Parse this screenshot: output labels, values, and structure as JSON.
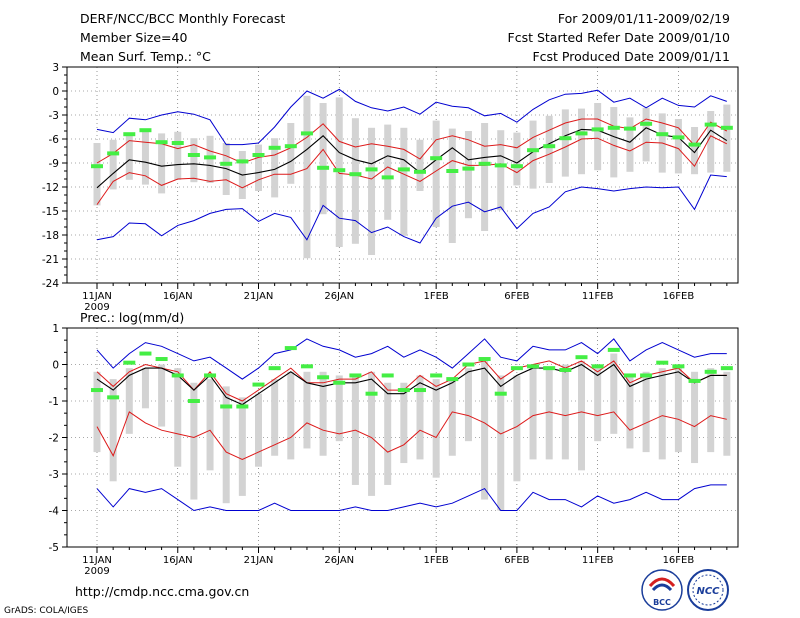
{
  "header": {
    "left": [
      "DERF/NCC/BCC Monthly Forecast",
      "Member Size=40",
      "Mean Surf. Temp.: °C"
    ],
    "right": [
      "For 2009/01/11-2009/02/19",
      "Fcst Started Refer Date 2009/01/10",
      "Fcst Produced Date 2009/01/11"
    ]
  },
  "footer": {
    "url": "http://cmdp.ncc.cma.gov.cn",
    "credit": "GrADS: COLA/IGES",
    "logo_left_text": "BCC",
    "logo_right_text": "NCC"
  },
  "colors": {
    "box": "#d3d3d3",
    "mean": "#000000",
    "quantile": "#dd1a1a",
    "extreme": "#0000d0",
    "obs": "#44ee44",
    "grid": "#555555"
  },
  "chart_data": [
    {
      "type": "line",
      "title": "Mean Surf. Temp.: °C",
      "ylim": [
        -24,
        3
      ],
      "yticks": [
        3,
        0,
        -3,
        -6,
        -9,
        -12,
        -15,
        -18,
        -21,
        -24
      ],
      "xticks": [
        {
          "day": 0,
          "label": "11JAN",
          "sub": "2009"
        },
        {
          "day": 5,
          "label": "16JAN"
        },
        {
          "day": 10,
          "label": "21JAN"
        },
        {
          "day": 15,
          "label": "26JAN"
        },
        {
          "day": 21,
          "label": "1FEB"
        },
        {
          "day": 26,
          "label": "6FEB"
        },
        {
          "day": 31,
          "label": "11FEB"
        },
        {
          "day": 36,
          "label": "16FEB"
        }
      ],
      "series": [
        {
          "name": "ensemble max",
          "values": [
            -4.8,
            -5.2,
            -3.4,
            -3.6,
            -3.0,
            -2.6,
            -2.9,
            -3.6,
            -6.7,
            -6.7,
            -6.5,
            -4.5,
            -2.0,
            0.0,
            -0.9,
            0.2,
            -1.3,
            -2.1,
            -2.5,
            -2.0,
            -2.9,
            -1.4,
            -1.9,
            -2.1,
            -3.1,
            -2.8,
            -3.9,
            -2.3,
            -1.1,
            -0.4,
            -0.3,
            0.1,
            -1.4,
            -0.9,
            -2.1,
            -0.9,
            -1.8,
            -2.0,
            -0.6,
            -1.3
          ]
        },
        {
          "name": "upper quantile",
          "values": [
            -9.0,
            -7.8,
            -6.2,
            -6.4,
            -6.6,
            -7.2,
            -6.7,
            -7.5,
            -8.1,
            -9.0,
            -8.3,
            -8.0,
            -7.1,
            -5.8,
            -4.1,
            -6.3,
            -7.0,
            -6.6,
            -6.9,
            -7.3,
            -8.5,
            -6.1,
            -5.6,
            -6.1,
            -6.9,
            -6.7,
            -7.1,
            -5.8,
            -4.9,
            -4.0,
            -3.5,
            -3.5,
            -4.4,
            -4.7,
            -3.5,
            -4.0,
            -4.6,
            -6.8,
            -3.9,
            -5.0
          ]
        },
        {
          "name": "ensemble mean",
          "values": [
            -12.1,
            -10.3,
            -8.6,
            -8.9,
            -9.4,
            -9.2,
            -9.1,
            -9.3,
            -9.7,
            -10.5,
            -10.2,
            -9.8,
            -8.8,
            -7.3,
            -5.6,
            -7.7,
            -8.6,
            -9.1,
            -8.1,
            -8.6,
            -10.2,
            -8.6,
            -7.1,
            -8.6,
            -8.3,
            -8.1,
            -9.0,
            -7.6,
            -6.6,
            -5.6,
            -4.8,
            -4.9,
            -5.7,
            -6.4,
            -4.6,
            -5.5,
            -5.8,
            -7.7,
            -4.9,
            -6.2
          ]
        },
        {
          "name": "lower quantile",
          "values": [
            -14.2,
            -11.3,
            -10.2,
            -10.6,
            -11.8,
            -11.0,
            -10.9,
            -11.3,
            -11.1,
            -12.1,
            -11.1,
            -10.4,
            -10.4,
            -9.7,
            -7.3,
            -10.3,
            -10.5,
            -11.0,
            -9.5,
            -10.4,
            -11.3,
            -10.0,
            -8.7,
            -9.3,
            -9.3,
            -9.1,
            -10.2,
            -8.7,
            -7.9,
            -7.0,
            -6.0,
            -5.9,
            -6.8,
            -7.5,
            -6.4,
            -6.5,
            -7.2,
            -9.4,
            -5.6,
            -6.6
          ]
        },
        {
          "name": "ensemble min",
          "values": [
            -18.6,
            -18.2,
            -16.5,
            -16.6,
            -18.1,
            -16.8,
            -16.2,
            -15.3,
            -14.8,
            -14.7,
            -16.3,
            -15.3,
            -15.8,
            -18.6,
            -14.3,
            -15.9,
            -16.2,
            -17.7,
            -17.0,
            -18.2,
            -19.0,
            -15.9,
            -14.4,
            -13.9,
            -15.1,
            -14.5,
            -17.2,
            -15.3,
            -14.5,
            -12.6,
            -12.0,
            -12.2,
            -12.5,
            -12.2,
            -12.0,
            -12.1,
            -12.0,
            -14.8,
            -10.5,
            -10.7
          ]
        },
        {
          "name": "box top",
          "values": [
            -6.5,
            -6.1,
            -5.2,
            -4.9,
            -5.3,
            -5.1,
            -5.9,
            -5.6,
            -6.5,
            -7.5,
            -6.7,
            -5.9,
            -4.0,
            -0.6,
            -1.5,
            -0.8,
            -3.4,
            -4.6,
            -4.2,
            -4.6,
            -6.1,
            -3.7,
            -4.7,
            -5.0,
            -4.0,
            -4.9,
            -5.2,
            -3.7,
            -3.1,
            -2.3,
            -2.2,
            -1.5,
            -2.0,
            -3.3,
            -2.1,
            -2.8,
            -3.5,
            -4.5,
            -2.5,
            -1.7
          ]
        },
        {
          "name": "box bottom",
          "values": [
            -14.3,
            -12.3,
            -11.1,
            -11.7,
            -12.8,
            -11.1,
            -11.4,
            -11.5,
            -13.0,
            -13.5,
            -12.5,
            -13.3,
            -11.6,
            -20.9,
            -15.4,
            -19.5,
            -19.1,
            -20.5,
            -16.1,
            -18.1,
            -12.5,
            -17.0,
            -19.0,
            -15.9,
            -17.5,
            -14.9,
            -11.8,
            -12.2,
            -11.5,
            -10.7,
            -10.4,
            -9.9,
            -10.8,
            -10.1,
            -8.8,
            -10.2,
            -10.3,
            -10.4,
            -10.2,
            -10.1
          ]
        },
        {
          "name": "observed",
          "values": [
            -9.4,
            -7.8,
            -5.4,
            -4.9,
            -6.4,
            -6.5,
            -8.0,
            -8.3,
            -9.1,
            -8.8,
            -8.0,
            -7.1,
            -6.9,
            -5.3,
            -9.6,
            -9.9,
            -10.4,
            -9.8,
            -10.8,
            -9.8,
            -10.1,
            -8.4,
            -10.0,
            -9.7,
            -9.1,
            -9.3,
            -9.4,
            -7.4,
            -6.9,
            -5.9,
            -5.3,
            -4.8,
            -4.6,
            -4.7,
            -4.1,
            -5.4,
            -5.8,
            -6.7,
            -4.2,
            -4.6
          ]
        }
      ]
    },
    {
      "type": "line",
      "title": "Prec.: log(mm/d)",
      "ylim": [
        -5,
        1
      ],
      "yticks": [
        1,
        0,
        -1,
        -2,
        -3,
        -4,
        -5
      ],
      "xticks": [
        {
          "day": 0,
          "label": "11JAN",
          "sub": "2009"
        },
        {
          "day": 5,
          "label": "16JAN"
        },
        {
          "day": 10,
          "label": "21JAN"
        },
        {
          "day": 15,
          "label": "26JAN"
        },
        {
          "day": 21,
          "label": "1FEB"
        },
        {
          "day": 26,
          "label": "6FEB"
        },
        {
          "day": 31,
          "label": "11FEB"
        },
        {
          "day": 36,
          "label": "16FEB"
        }
      ],
      "series": [
        {
          "name": "ensemble max",
          "values": [
            0.4,
            -0.1,
            0.3,
            0.6,
            0.5,
            0.3,
            0.1,
            0.2,
            -0.1,
            -0.4,
            -0.1,
            0.3,
            0.4,
            0.7,
            0.5,
            0.4,
            0.2,
            0.3,
            0.5,
            0.2,
            0.4,
            0.2,
            -0.1,
            0.3,
            0.7,
            0.2,
            0.1,
            0.5,
            0.4,
            0.4,
            0.6,
            0.3,
            0.7,
            0.1,
            0.4,
            0.6,
            0.4,
            0.2,
            0.3,
            0.3
          ]
        },
        {
          "name": "upper quantile",
          "values": [
            -0.2,
            -0.6,
            -0.2,
            0.0,
            -0.1,
            -0.2,
            -0.7,
            -0.2,
            -0.8,
            -1.0,
            -0.7,
            -0.4,
            -0.1,
            -0.5,
            -0.5,
            -0.4,
            -0.4,
            -0.2,
            -0.7,
            -0.7,
            -0.3,
            -0.6,
            -0.4,
            0.0,
            0.1,
            -0.4,
            -0.1,
            0.0,
            0.1,
            -0.1,
            0.1,
            -0.2,
            0.1,
            -0.5,
            -0.3,
            -0.2,
            -0.1,
            -0.5,
            -0.3,
            -0.3
          ]
        },
        {
          "name": "ensemble mean",
          "values": [
            -0.4,
            -0.7,
            -0.3,
            -0.1,
            -0.1,
            -0.3,
            -0.7,
            -0.3,
            -0.9,
            -1.1,
            -0.8,
            -0.5,
            -0.2,
            -0.5,
            -0.6,
            -0.5,
            -0.5,
            -0.4,
            -0.8,
            -0.8,
            -0.5,
            -0.7,
            -0.5,
            -0.2,
            -0.1,
            -0.6,
            -0.3,
            -0.1,
            -0.1,
            -0.2,
            0.0,
            -0.3,
            0.0,
            -0.6,
            -0.4,
            -0.3,
            -0.2,
            -0.5,
            -0.3,
            -0.3
          ]
        },
        {
          "name": "lower quantile",
          "values": [
            -1.7,
            -2.5,
            -1.3,
            -1.6,
            -1.8,
            -1.9,
            -2.0,
            -1.8,
            -2.4,
            -2.6,
            -2.4,
            -2.2,
            -2.0,
            -1.6,
            -1.8,
            -1.9,
            -1.8,
            -2.0,
            -2.4,
            -2.2,
            -1.8,
            -2.0,
            -1.3,
            -1.4,
            -1.6,
            -1.9,
            -1.7,
            -1.4,
            -1.3,
            -1.4,
            -1.3,
            -1.4,
            -1.3,
            -1.8,
            -1.6,
            -1.4,
            -1.5,
            -1.7,
            -1.4,
            -1.5
          ]
        },
        {
          "name": "ensemble min",
          "values": [
            -3.4,
            -3.9,
            -3.4,
            -3.5,
            -3.4,
            -3.7,
            -4.0,
            -3.9,
            -4.0,
            -4.0,
            -4.0,
            -3.8,
            -4.0,
            -4.0,
            -4.0,
            -4.0,
            -3.9,
            -4.0,
            -4.0,
            -3.9,
            -3.8,
            -3.9,
            -3.8,
            -3.6,
            -3.4,
            -4.0,
            -4.0,
            -3.5,
            -3.7,
            -3.7,
            -3.9,
            -3.6,
            -3.8,
            -3.7,
            -3.5,
            -3.7,
            -3.7,
            -3.4,
            -3.3,
            -3.3
          ]
        },
        {
          "name": "box top",
          "values": [
            -0.2,
            -0.4,
            -0.1,
            -0.1,
            0.0,
            -0.1,
            -0.5,
            -0.4,
            -0.6,
            -0.9,
            -0.8,
            -0.4,
            -0.2,
            -0.2,
            -0.2,
            -0.3,
            -0.3,
            -0.2,
            -0.5,
            -0.5,
            -0.3,
            -0.4,
            -0.4,
            -0.1,
            0.2,
            -0.3,
            -0.3,
            0.0,
            -0.1,
            0.0,
            0.1,
            -0.1,
            0.3,
            -0.3,
            -0.2,
            -0.1,
            0.0,
            -0.2,
            -0.1,
            -0.2
          ]
        },
        {
          "name": "box bottom",
          "values": [
            -2.4,
            -3.2,
            -1.9,
            -1.2,
            -1.7,
            -2.8,
            -3.7,
            -2.9,
            -3.8,
            -3.6,
            -2.8,
            -2.5,
            -2.6,
            -2.3,
            -2.5,
            -2.1,
            -3.3,
            -3.6,
            -3.3,
            -2.7,
            -2.6,
            -3.1,
            -2.5,
            -2.1,
            -3.7,
            -4.0,
            -3.2,
            -2.6,
            -2.6,
            -2.6,
            -2.9,
            -2.1,
            -1.9,
            -2.3,
            -2.4,
            -2.6,
            -2.4,
            -2.7,
            -2.4,
            -2.5
          ]
        },
        {
          "name": "observed",
          "values": [
            -0.7,
            -0.9,
            0.05,
            0.3,
            0.15,
            -0.3,
            -1.0,
            -0.3,
            -1.15,
            -1.15,
            -0.55,
            -0.1,
            0.45,
            -0.05,
            -0.35,
            -0.5,
            -0.3,
            -0.8,
            -0.3,
            -0.7,
            -0.7,
            -0.3,
            -0.4,
            0.0,
            0.15,
            -0.8,
            -0.1,
            -0.05,
            -0.1,
            -0.15,
            0.2,
            -0.05,
            0.4,
            -0.3,
            -0.3,
            0.05,
            -0.05,
            -0.45,
            -0.2,
            -0.1
          ]
        }
      ]
    }
  ]
}
